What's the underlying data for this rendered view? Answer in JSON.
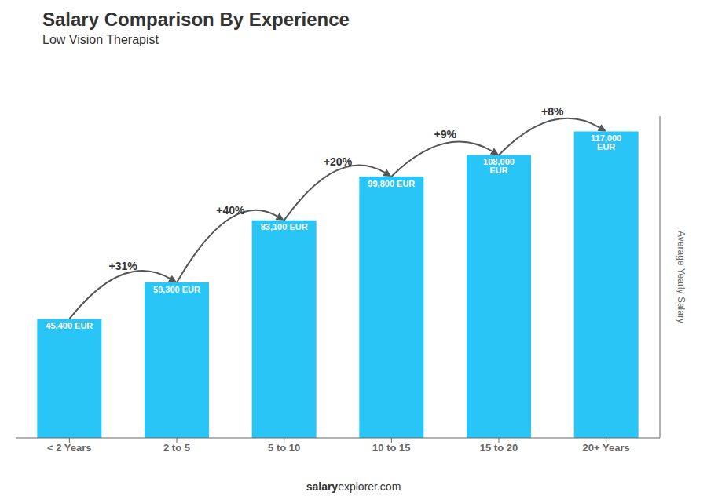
{
  "chart_data": {
    "type": "bar",
    "title": "Salary Comparison By Experience",
    "subtitle": "Low Vision Therapist",
    "ylabel": "Average Yearly Salary",
    "categories": [
      "< 2 Years",
      "2 to 5",
      "5 to 10",
      "10 to 15",
      "15 to 20",
      "20+ Years"
    ],
    "values": [
      45400,
      59300,
      83100,
      99800,
      108000,
      117000
    ],
    "value_labels": [
      "45,400 EUR",
      "59,300 EUR",
      "83,100 EUR",
      "99,800 EUR",
      "108,000 EUR",
      "117,000 EUR"
    ],
    "data_labels": true,
    "color": "#29c5f6",
    "ylim": [
      0,
      122850
    ],
    "tick_labels": "x",
    "grid": false,
    "annotations": [
      "+31%",
      "+40%",
      "+20%",
      "+9%",
      "+8%"
    ],
    "footer": [
      "salary",
      "explorer.com"
    ]
  }
}
